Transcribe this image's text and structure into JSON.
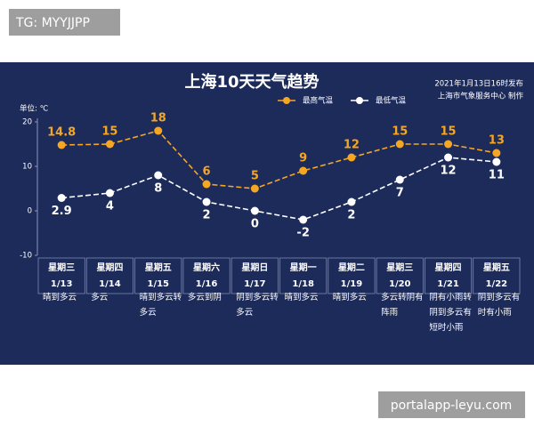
{
  "overlay": {
    "top_left": "TG: MYYJJPP",
    "bottom_right": "portalapp-leyu.com"
  },
  "chart_data": {
    "type": "line",
    "title": "上海10天天气趋势",
    "publish_note": [
      "2021年1月13日16时发布",
      "上海市气象服务中心 制作"
    ],
    "unit_label": "单位: ℃",
    "weekdays": [
      "星期三",
      "星期四",
      "星期五",
      "星期六",
      "星期日",
      "星期一",
      "星期二",
      "星期三",
      "星期四",
      "星期五"
    ],
    "categories": [
      "1/13",
      "1/14",
      "1/15",
      "1/16",
      "1/17",
      "1/18",
      "1/19",
      "1/20",
      "1/21",
      "1/22"
    ],
    "weather": [
      "晴到多云",
      "多云",
      "晴到多云转多云",
      "多云到阴",
      "阴到多云转多云",
      "晴到多云",
      "晴到多云",
      "多云转阴有阵雨",
      "阴有小雨转阴到多云有短时小雨",
      "阴到多云有时有小雨"
    ],
    "series": [
      {
        "name": "最高气温",
        "color": "#f5a623",
        "values": [
          14.8,
          15,
          18,
          6,
          5,
          9,
          12,
          15,
          15,
          13
        ]
      },
      {
        "name": "最低气温",
        "color": "#ffffff",
        "values": [
          2.9,
          4,
          8,
          2,
          0,
          -2,
          2,
          7,
          12,
          11
        ]
      }
    ],
    "ylim": [
      -10,
      20
    ],
    "yticks": [
      -10,
      0,
      10,
      20
    ]
  }
}
